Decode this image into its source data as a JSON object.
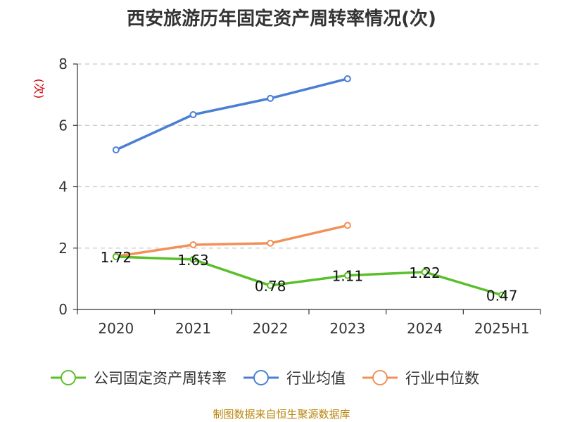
{
  "chart_data": {
    "type": "line",
    "title": "西安旅游历年固定资产周转率情况(次)",
    "ylabel": "(次)",
    "xlabel": "",
    "categories": [
      "2020",
      "2021",
      "2022",
      "2023",
      "2024",
      "2025H1"
    ],
    "ylim": [
      0,
      8
    ],
    "yticks": [
      "0",
      "2",
      "4",
      "6",
      "8"
    ],
    "grid": true,
    "legend_position": "bottom",
    "series": [
      {
        "name": "公司固定资产周转率",
        "color": "#5bbf2b",
        "values": [
          1.72,
          1.63,
          0.78,
          1.11,
          1.22,
          0.47
        ],
        "labels": [
          "1.72",
          "1.63",
          "0.78",
          "1.11",
          "1.22",
          "0.47"
        ]
      },
      {
        "name": "行业均值",
        "color": "#4a7fd4",
        "values": [
          5.2,
          6.35,
          6.88,
          7.52,
          null,
          null
        ]
      },
      {
        "name": "行业中位数",
        "color": "#f29058",
        "values": [
          1.73,
          2.11,
          2.16,
          2.74,
          null,
          null
        ]
      }
    ]
  },
  "source": "制图数据来自恒生聚源数据库"
}
